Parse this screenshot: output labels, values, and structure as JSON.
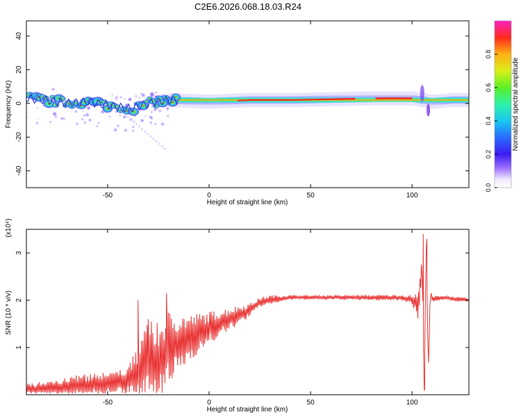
{
  "title": "C2E6.2026.068.18.03.R24",
  "chart_data": [
    {
      "type": "heatmap",
      "panel": "spectrogram",
      "xlabel": "Height of straight line (km)",
      "ylabel": "Frequency (Hz)",
      "xlim": [
        -90,
        128
      ],
      "ylim": [
        -50,
        49
      ],
      "x_ticks": [
        -50,
        0,
        50,
        100
      ],
      "y_ticks": [
        -40,
        -20,
        0,
        20,
        40
      ],
      "x_tick_labels": [
        "-50",
        "0",
        "50",
        "100"
      ],
      "y_tick_labels": [
        "-40",
        "-20",
        "0",
        "20",
        "40"
      ],
      "ridge_x": [
        -90,
        -80,
        -70,
        -60,
        -50,
        -45,
        -40,
        -35,
        -30,
        -25,
        -20,
        -10,
        0,
        10,
        20,
        40,
        60,
        80,
        100,
        105,
        110,
        120,
        128
      ],
      "ridge_freq": [
        3,
        2,
        0,
        1,
        -1,
        -2,
        -3,
        -2,
        0,
        1,
        2,
        1.5,
        1,
        1.5,
        2,
        2,
        2.5,
        3,
        3,
        2,
        1,
        2,
        2
      ],
      "scatter_extent_x": [
        -90,
        -20
      ],
      "scatter_extent_freq": [
        -28,
        10
      ],
      "colorbar": {
        "label": "Normalized spectral amplitude",
        "range": [
          0,
          1
        ],
        "ticks": [
          0.0,
          0.2,
          0.4,
          0.6,
          0.8
        ],
        "tick_labels": [
          "0.0",
          "0.2",
          "0.4",
          "0.6",
          "0.8"
        ]
      }
    },
    {
      "type": "line",
      "panel": "snr",
      "xlabel": "Height of straight line (km)",
      "ylabel": "SNR (10 * v/v)",
      "multiplier": "(x10⁴)",
      "xlim": [
        -90,
        128
      ],
      "ylim": [
        0,
        3.5
      ],
      "x_ticks": [
        -50,
        0,
        50,
        100
      ],
      "y_ticks": [
        1,
        2,
        3
      ],
      "x_tick_labels": [
        "-50",
        "0",
        "50",
        "100"
      ],
      "y_tick_labels": [
        "1",
        "2",
        "3"
      ],
      "series": [
        {
          "name": "SNR",
          "color": "#e83030",
          "envelope_x": [
            -90,
            -60,
            -40,
            -35,
            -30,
            -25,
            -20,
            -10,
            0,
            10,
            20,
            25,
            30,
            40,
            50,
            60,
            80,
            95,
            100,
            103,
            105,
            106,
            107,
            108,
            109,
            110,
            115,
            120,
            128
          ],
          "envelope_y": [
            0.15,
            0.3,
            0.4,
            0.7,
            1.1,
            1.0,
            1.3,
            1.4,
            1.55,
            1.7,
            1.85,
            2.0,
            2.05,
            2.08,
            2.08,
            2.08,
            2.08,
            2.08,
            2.05,
            2.0,
            2.8,
            0.1,
            3.3,
            0.5,
            2.2,
            2.05,
            2.08,
            2.05,
            2.02
          ],
          "noise_y": [
            0.15,
            0.25,
            0.3,
            0.6,
            0.8,
            0.85,
            0.8,
            0.5,
            0.35,
            0.25,
            0.15,
            0.1,
            0.1,
            0.05,
            0.05,
            0.05,
            0.06,
            0.06,
            0.1,
            0.3,
            0.2,
            0,
            0,
            0,
            0.1,
            0.06,
            0.05,
            0.05,
            0.05
          ],
          "peaks": [
            {
              "x": -35,
              "y": 2.0
            },
            {
              "x": -30,
              "y": 1.6
            },
            {
              "x": -21,
              "y": 2.15
            },
            {
              "x": 105.5,
              "y": 3.4
            },
            {
              "x": 106.2,
              "y": 0.1
            },
            {
              "x": 107.3,
              "y": 3.3
            }
          ]
        }
      ]
    }
  ]
}
